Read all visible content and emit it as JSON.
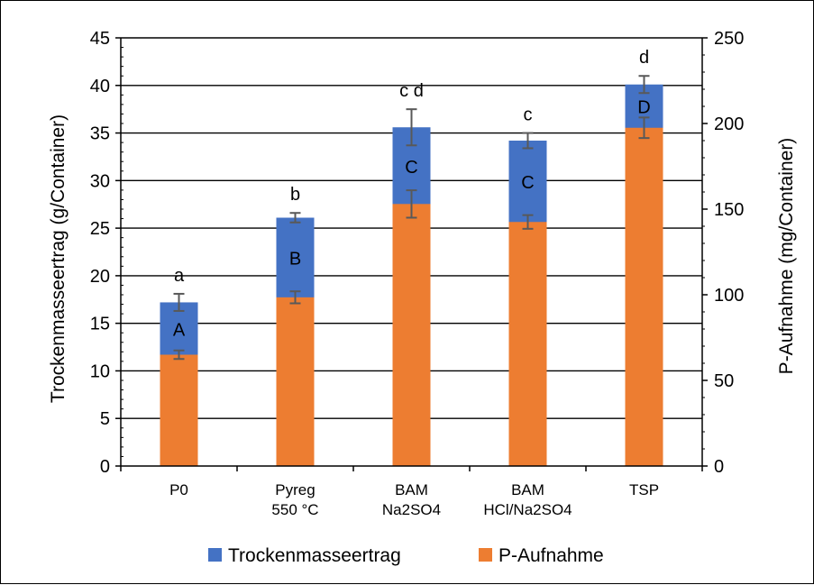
{
  "chart_data": {
    "type": "bar",
    "stacked": true,
    "categories": [
      [
        "P0"
      ],
      [
        "Pyreg",
        "550 °C"
      ],
      [
        "BAM",
        "Na2SO4"
      ],
      [
        "BAM",
        "HCl/Na2SO4"
      ],
      [
        "TSP"
      ]
    ],
    "series": [
      {
        "name": "Trockenmasseertrag",
        "color": "#4472C4",
        "axis": "left",
        "values": [
          17.2,
          26.1,
          35.6,
          34.2,
          40.1
        ],
        "error": [
          0.9,
          0.5,
          1.9,
          0.8,
          0.9
        ],
        "group_letters": [
          "a",
          "b",
          "c d",
          "c",
          "d"
        ]
      },
      {
        "name": "P-Aufnahme",
        "color": "#ED7D31",
        "axis": "right",
        "values": [
          65,
          98.5,
          153,
          142.5,
          197.5
        ],
        "error": [
          2.5,
          3.5,
          8,
          4,
          6
        ],
        "group_letters": [
          "A",
          "B",
          "C",
          "C",
          "D"
        ]
      }
    ],
    "ylabel": "Trockenmasseertrag (g/Container)",
    "ylim": [
      0,
      45
    ],
    "yticks": [
      0,
      5,
      10,
      15,
      20,
      25,
      30,
      35,
      40,
      45
    ],
    "y2label": "P-Aufnahme  (mg/Container)",
    "y2lim": [
      0,
      250
    ],
    "y2ticks": [
      0,
      50,
      100,
      150,
      200,
      250
    ],
    "grid": true,
    "legend_position": "bottom"
  }
}
